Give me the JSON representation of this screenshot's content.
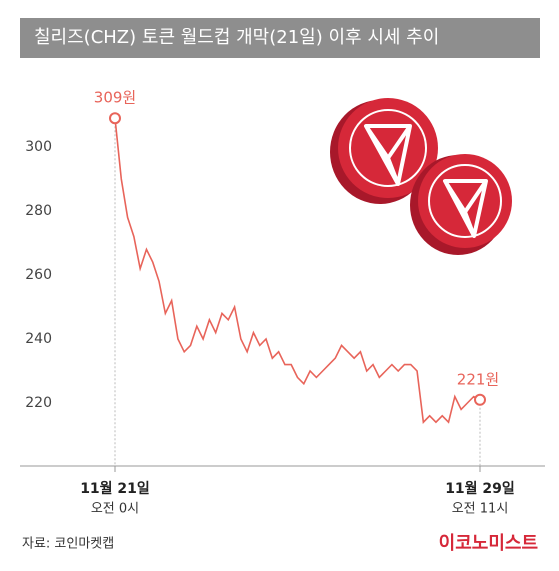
{
  "chart_data": {
    "type": "line",
    "title": "칠리즈(CHZ) 토큰 월드컵 개막(21일) 이후 시세 추이",
    "categories": [
      "11월 21일",
      null,
      null,
      null,
      null,
      null,
      null,
      null,
      null,
      null,
      null,
      null,
      null,
      null,
      null,
      null,
      null,
      null,
      null,
      null,
      null,
      null,
      null,
      null,
      null,
      null,
      null,
      null,
      null,
      null,
      null,
      null,
      null,
      null,
      null,
      null,
      null,
      null,
      null,
      null,
      null,
      null,
      null,
      null,
      null,
      null,
      null,
      null,
      null,
      null,
      null,
      null,
      null,
      null,
      null,
      null,
      null,
      null,
      "11월 29일"
    ],
    "category_times": [
      "오전 0시",
      null,
      null,
      null,
      null,
      null,
      null,
      null,
      null,
      null,
      null,
      null,
      null,
      null,
      null,
      null,
      null,
      null,
      null,
      null,
      null,
      null,
      null,
      null,
      null,
      null,
      null,
      null,
      null,
      null,
      null,
      null,
      null,
      null,
      null,
      null,
      null,
      null,
      null,
      null,
      null,
      null,
      null,
      null,
      null,
      null,
      null,
      null,
      null,
      null,
      null,
      null,
      null,
      null,
      null,
      null,
      null,
      null,
      "오전 11시"
    ],
    "values": [
      309,
      290,
      278,
      272,
      262,
      268,
      264,
      258,
      248,
      252,
      240,
      236,
      238,
      244,
      240,
      246,
      242,
      248,
      246,
      250,
      240,
      236,
      242,
      238,
      240,
      234,
      236,
      232,
      232,
      228,
      226,
      230,
      228,
      230,
      232,
      234,
      238,
      236,
      234,
      236,
      230,
      232,
      228,
      230,
      232,
      230,
      232,
      232,
      230,
      214,
      216,
      214,
      216,
      214,
      222,
      218,
      220,
      222,
      221
    ],
    "value_labels": [
      "309원",
      null,
      null,
      null,
      null,
      null,
      null,
      null,
      null,
      null,
      null,
      null,
      null,
      null,
      null,
      null,
      null,
      null,
      null,
      null,
      null,
      null,
      null,
      null,
      null,
      null,
      null,
      null,
      null,
      null,
      null,
      null,
      null,
      null,
      null,
      null,
      null,
      null,
      null,
      null,
      null,
      null,
      null,
      null,
      null,
      null,
      null,
      null,
      null,
      null,
      null,
      null,
      null,
      null,
      null,
      null,
      null,
      null,
      "221원"
    ],
    "color": "#e8645a",
    "ylim": [
      200,
      320
    ],
    "yticks": [
      220,
      240,
      260,
      280,
      300
    ],
    "source": "자료: 코인마켓캡",
    "brand": "이코노미스트"
  }
}
